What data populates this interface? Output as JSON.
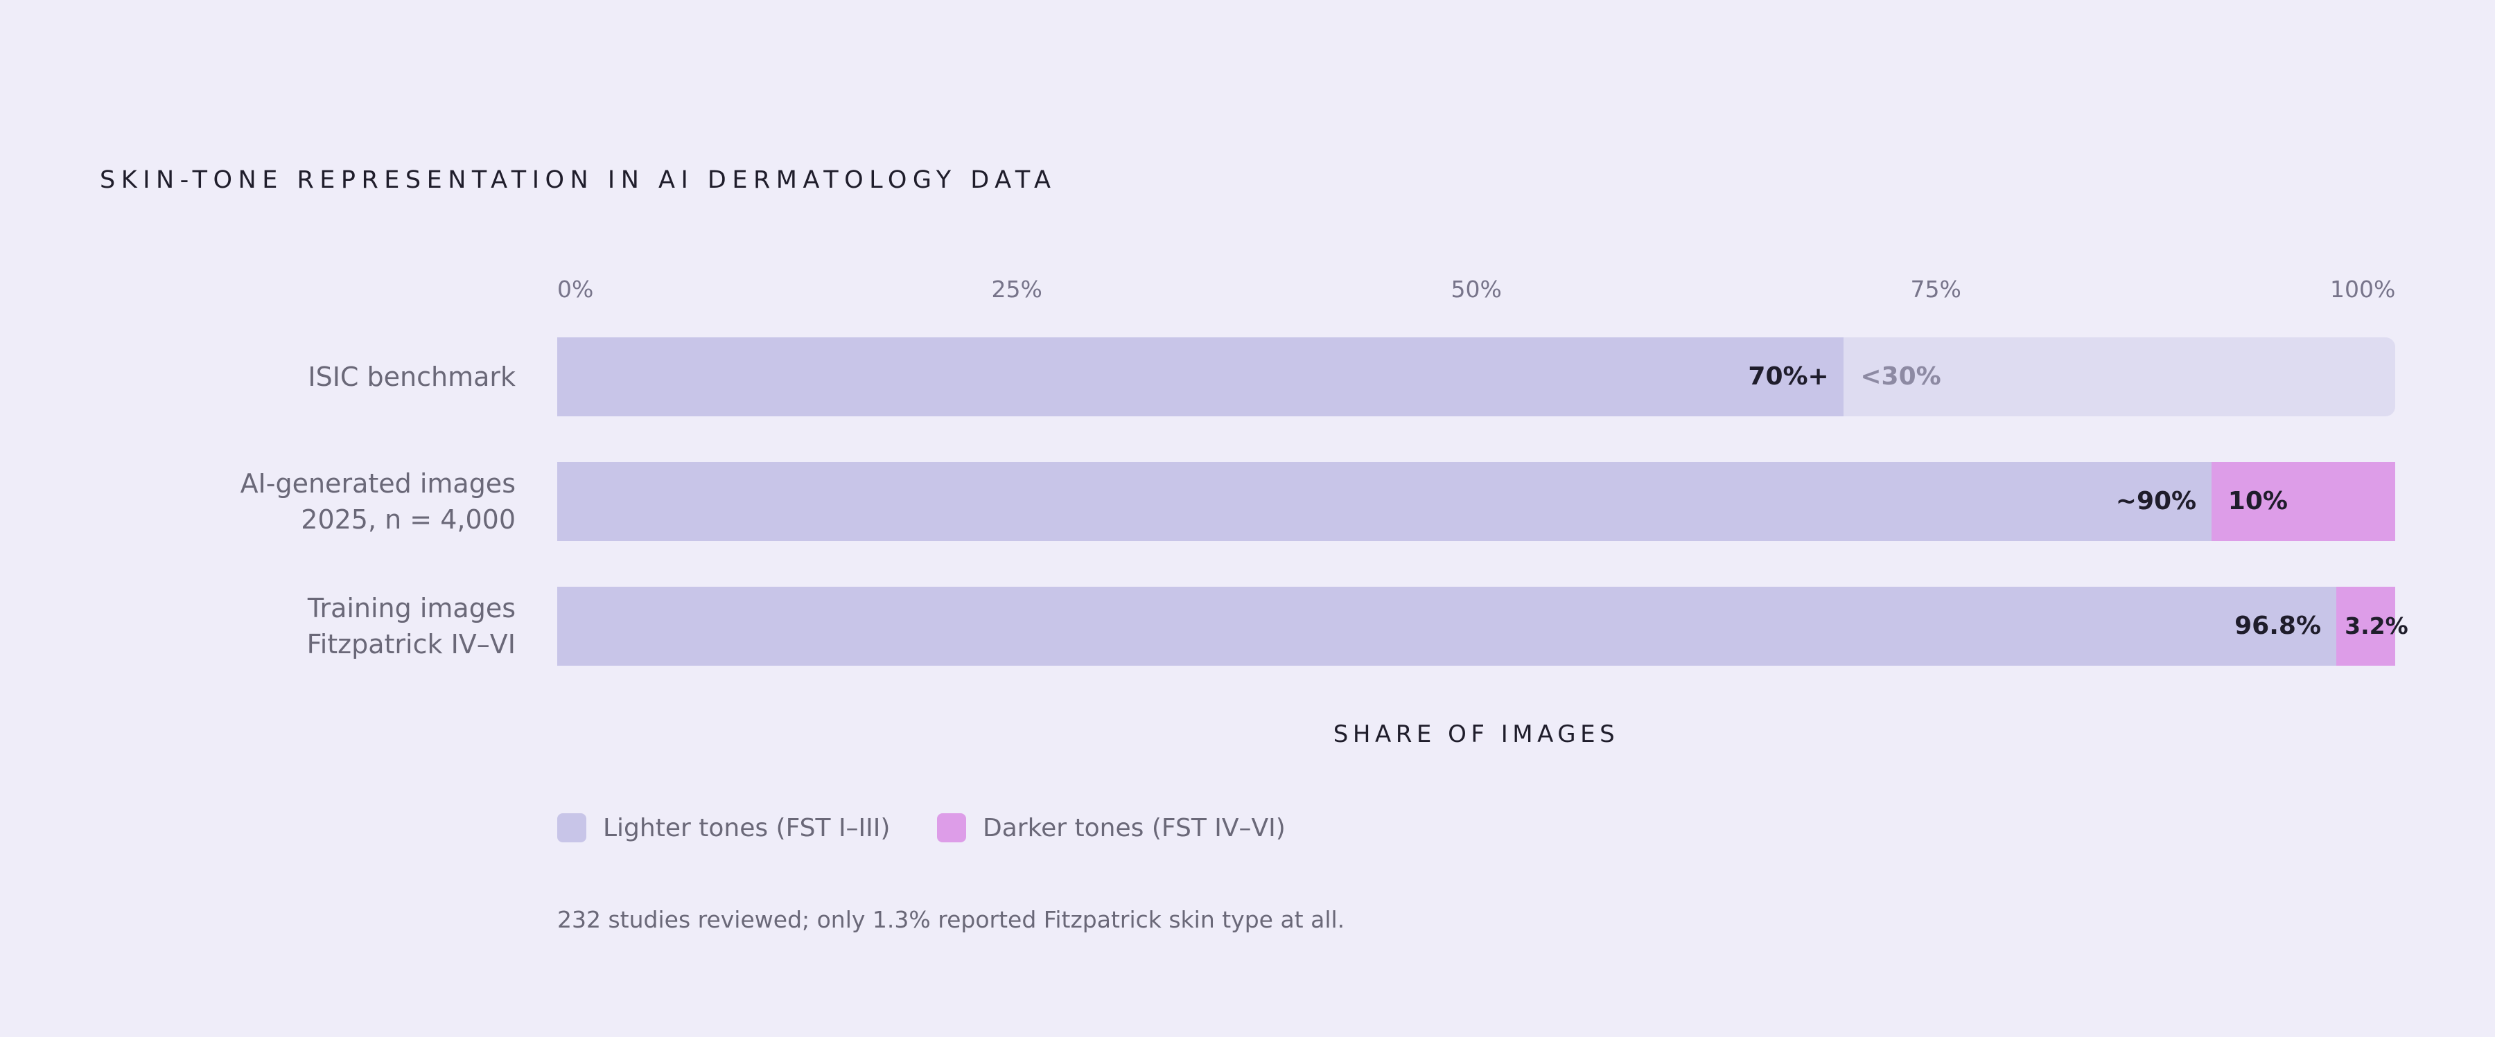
{
  "colors": {
    "background": "#efedf9",
    "lighter": "#c8c5e8",
    "darker": "#dd9de8",
    "unknown_remainder": "#dedcf1"
  },
  "legend": [
    {
      "label": "Lighter tones (FST I–III)",
      "color": "#c8c5e8"
    },
    {
      "label": "Darker tones (FST IV–VI)",
      "color": "#dd9de8"
    }
  ],
  "note": "232 studies reviewed; only 1.3% reported Fitzpatrick skin type at all.",
  "chart_data": {
    "type": "bar",
    "orientation": "horizontal",
    "stacked": true,
    "title": "SKIN-TONE REPRESENTATION IN AI DERMATOLOGY DATA",
    "xlabel": "SHARE OF IMAGES",
    "ylabel": "",
    "xlim": [
      0,
      100
    ],
    "x_ticks": [
      "0%",
      "25%",
      "50%",
      "75%",
      "100%"
    ],
    "grid": false,
    "legend_position": "bottom-left",
    "categories": [
      [
        "ISIC benchmark"
      ],
      [
        "AI-generated images",
        "2025, n = 4,000"
      ],
      [
        "Training images",
        "Fitzpatrick IV–VI"
      ]
    ],
    "series": [
      {
        "name": "Lighter tones (FST I–III)",
        "values": [
          70,
          90,
          96.8
        ],
        "labels": [
          "70%+",
          "~90%",
          "96.8%"
        ]
      },
      {
        "name": "Darker tones (FST IV–VI)",
        "values": [
          null,
          10,
          3.2
        ],
        "labels": [
          "<30%",
          "10%",
          "3.2%"
        ]
      }
    ]
  }
}
